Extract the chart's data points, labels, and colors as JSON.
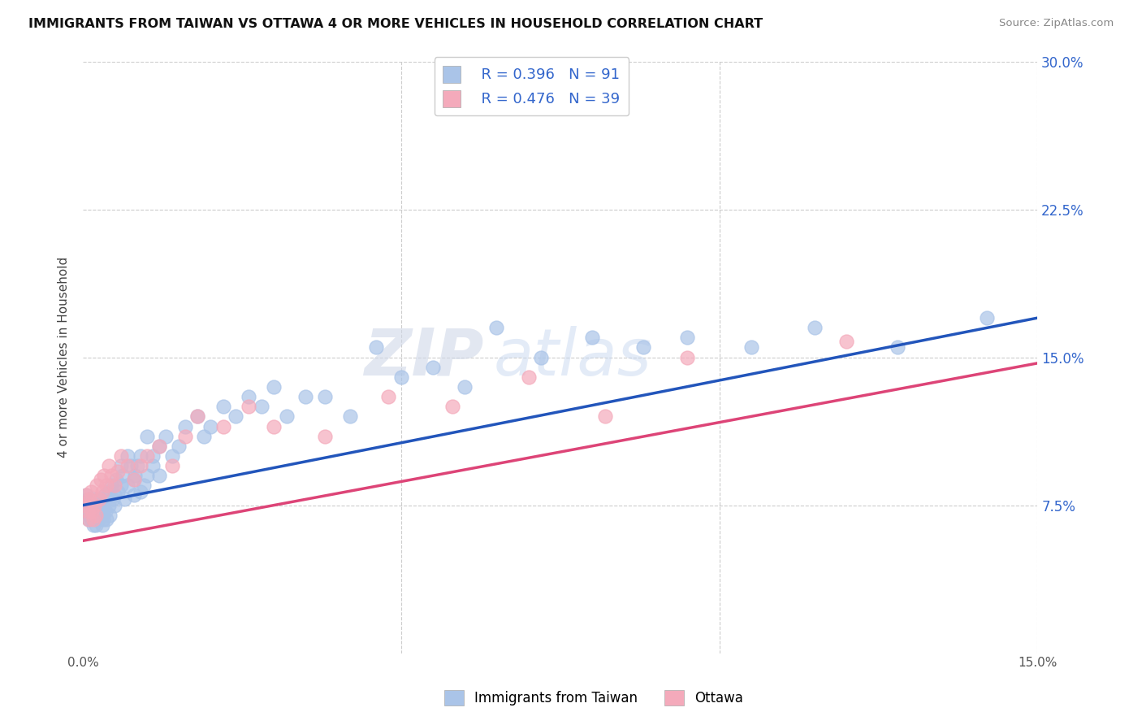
{
  "title": "IMMIGRANTS FROM TAIWAN VS OTTAWA 4 OR MORE VEHICLES IN HOUSEHOLD CORRELATION CHART",
  "source": "Source: ZipAtlas.com",
  "ylabel": "4 or more Vehicles in Household",
  "legend_label_1": "Immigrants from Taiwan",
  "legend_label_2": "Ottawa",
  "R1": 0.396,
  "N1": 91,
  "R2": 0.476,
  "N2": 39,
  "scatter_blue": "#aac4e8",
  "scatter_pink": "#f4aabb",
  "line_color_blue": "#2255bb",
  "line_color_pink": "#dd4477",
  "background_color": "#ffffff",
  "grid_color": "#cccccc",
  "xlim": [
    0.0,
    0.15
  ],
  "ylim": [
    0.0,
    0.3
  ],
  "watermark_zip": "ZIP",
  "watermark_atlas": "atlas",
  "taiwan_x": [
    0.0003,
    0.0005,
    0.0006,
    0.0007,
    0.0008,
    0.0009,
    0.001,
    0.001,
    0.001,
    0.0012,
    0.0013,
    0.0014,
    0.0015,
    0.0016,
    0.0017,
    0.0018,
    0.002,
    0.002,
    0.002,
    0.0022,
    0.0023,
    0.0024,
    0.0025,
    0.0026,
    0.0027,
    0.0028,
    0.003,
    0.003,
    0.003,
    0.0032,
    0.0034,
    0.0035,
    0.0037,
    0.004,
    0.004,
    0.0042,
    0.0045,
    0.0047,
    0.005,
    0.005,
    0.0052,
    0.0055,
    0.006,
    0.006,
    0.0062,
    0.0065,
    0.007,
    0.007,
    0.0075,
    0.008,
    0.008,
    0.0082,
    0.0085,
    0.009,
    0.009,
    0.0095,
    0.01,
    0.01,
    0.011,
    0.011,
    0.012,
    0.012,
    0.013,
    0.014,
    0.015,
    0.016,
    0.018,
    0.019,
    0.02,
    0.022,
    0.024,
    0.026,
    0.028,
    0.03,
    0.032,
    0.035,
    0.038,
    0.042,
    0.046,
    0.05,
    0.055,
    0.06,
    0.065,
    0.072,
    0.08,
    0.088,
    0.095,
    0.105,
    0.115,
    0.128,
    0.142
  ],
  "taiwan_y": [
    0.075,
    0.08,
    0.075,
    0.072,
    0.078,
    0.068,
    0.07,
    0.075,
    0.078,
    0.072,
    0.068,
    0.075,
    0.07,
    0.065,
    0.072,
    0.078,
    0.065,
    0.07,
    0.075,
    0.068,
    0.072,
    0.068,
    0.075,
    0.07,
    0.072,
    0.078,
    0.065,
    0.07,
    0.075,
    0.068,
    0.08,
    0.072,
    0.068,
    0.075,
    0.082,
    0.07,
    0.085,
    0.078,
    0.08,
    0.075,
    0.088,
    0.082,
    0.095,
    0.085,
    0.09,
    0.078,
    0.1,
    0.085,
    0.095,
    0.088,
    0.08,
    0.09,
    0.095,
    0.082,
    0.1,
    0.085,
    0.09,
    0.11,
    0.095,
    0.1,
    0.105,
    0.09,
    0.11,
    0.1,
    0.105,
    0.115,
    0.12,
    0.11,
    0.115,
    0.125,
    0.12,
    0.13,
    0.125,
    0.135,
    0.12,
    0.13,
    0.13,
    0.12,
    0.155,
    0.14,
    0.145,
    0.135,
    0.165,
    0.15,
    0.16,
    0.155,
    0.16,
    0.155,
    0.165,
    0.155,
    0.17
  ],
  "ottawa_x": [
    0.0003,
    0.0005,
    0.0007,
    0.0009,
    0.001,
    0.0012,
    0.0014,
    0.0016,
    0.0018,
    0.002,
    0.0022,
    0.0025,
    0.0028,
    0.003,
    0.0033,
    0.0037,
    0.004,
    0.0045,
    0.005,
    0.0055,
    0.006,
    0.007,
    0.008,
    0.009,
    0.01,
    0.012,
    0.014,
    0.016,
    0.018,
    0.022,
    0.026,
    0.03,
    0.038,
    0.048,
    0.058,
    0.07,
    0.082,
    0.095,
    0.12
  ],
  "ottawa_y": [
    0.075,
    0.08,
    0.072,
    0.068,
    0.078,
    0.082,
    0.072,
    0.068,
    0.075,
    0.07,
    0.085,
    0.078,
    0.088,
    0.082,
    0.09,
    0.085,
    0.095,
    0.09,
    0.085,
    0.092,
    0.1,
    0.095,
    0.088,
    0.095,
    0.1,
    0.105,
    0.095,
    0.11,
    0.12,
    0.115,
    0.125,
    0.115,
    0.11,
    0.13,
    0.125,
    0.14,
    0.12,
    0.15,
    0.158
  ]
}
